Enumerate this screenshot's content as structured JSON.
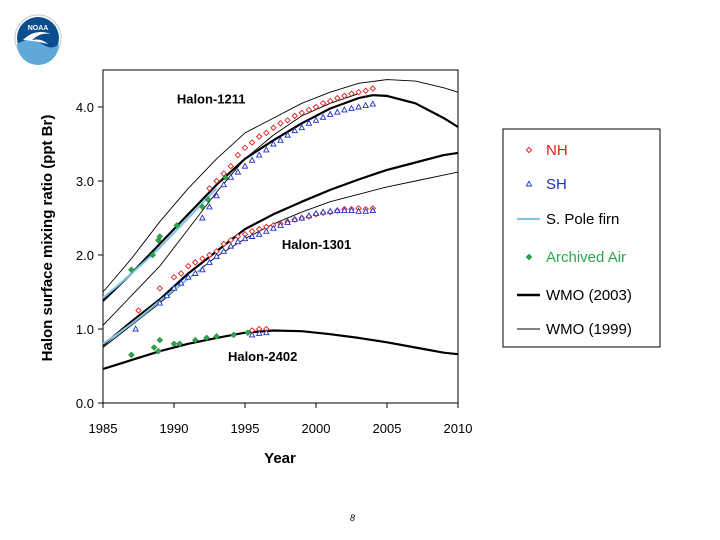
{
  "logo": {
    "text": "NOAA",
    "colors": {
      "outer": "#0a4e8f",
      "inner": "#5fa8d9",
      "bird": "#ffffff"
    }
  },
  "page_number": "8",
  "chart_data": {
    "type": "scatter",
    "xlabel": "Year",
    "ylabel": "Halon surface mixing ratio (ppt Br)",
    "xlim": [
      1985,
      2010
    ],
    "ylim": [
      0,
      4.5
    ],
    "x_ticks": [
      "1985",
      "1990",
      "1995",
      "2000",
      "2005",
      "2010"
    ],
    "y_ticks": [
      "0.0",
      "1.0",
      "2.0",
      "3.0",
      "4.0"
    ],
    "annotations": [
      {
        "text": "Halon-1211",
        "x": 1990.2,
        "y": 4.05
      },
      {
        "text": "Halon-1301",
        "x": 1997.6,
        "y": 2.08
      },
      {
        "text": "Halon-2402",
        "x": 1993.8,
        "y": 0.57
      }
    ],
    "legend": {
      "position": "right",
      "entries": [
        {
          "label": "NH",
          "marker": "diamond-open",
          "color": "#e0201b"
        },
        {
          "label": "SH",
          "marker": "triangle-open",
          "color": "#1e30c8"
        },
        {
          "label": "S. Pole firn",
          "marker": "line",
          "color": "#7ec4e8"
        },
        {
          "label": "Archived Air",
          "marker": "diamond-filled",
          "color": "#2aa84a"
        },
        {
          "label": "WMO (2003)",
          "marker": "line-thick",
          "color": "#000000"
        },
        {
          "label": "WMO (1999)",
          "marker": "line-thin",
          "color": "#000000"
        }
      ]
    },
    "series": [
      {
        "name": "WMO (2003)",
        "style": "thick",
        "color": "#000000",
        "group": "Halon-1211",
        "x": [
          1985,
          1987,
          1989,
          1991,
          1993,
          1995,
          1997,
          1999,
          2001,
          2003,
          2004,
          2005,
          2007,
          2009,
          2010
        ],
        "y": [
          1.38,
          1.75,
          2.15,
          2.55,
          2.95,
          3.3,
          3.55,
          3.78,
          3.98,
          4.12,
          4.16,
          4.15,
          4.05,
          3.85,
          3.73
        ]
      },
      {
        "name": "WMO (1999)",
        "style": "thin",
        "color": "#000000",
        "group": "Halon-1211 upper",
        "x": [
          1985,
          1987,
          1989,
          1991,
          1993,
          1995,
          1997,
          1999,
          2001,
          2003,
          2005,
          2007,
          2009,
          2010
        ],
        "y": [
          1.5,
          1.95,
          2.45,
          2.9,
          3.3,
          3.65,
          3.85,
          4.05,
          4.2,
          4.32,
          4.37,
          4.35,
          4.26,
          4.2
        ]
      },
      {
        "name": "WMO (1999)",
        "style": "thin",
        "color": "#000000",
        "group": "Halon-1211 lower",
        "x": [
          1985,
          1987,
          1989,
          1991,
          1993,
          1995,
          1997,
          1999,
          2001,
          2003
        ],
        "y": [
          1.05,
          1.45,
          1.85,
          2.35,
          2.85,
          3.3,
          3.62,
          3.88,
          4.05,
          4.18
        ]
      },
      {
        "name": "WMO (2003)",
        "style": "thick",
        "color": "#000000",
        "group": "Halon-1301",
        "x": [
          1985,
          1987,
          1989,
          1991,
          1993,
          1995,
          1997,
          1999,
          2001,
          2003,
          2005,
          2007,
          2009,
          2010
        ],
        "y": [
          0.78,
          1.1,
          1.4,
          1.75,
          2.05,
          2.35,
          2.55,
          2.72,
          2.88,
          3.02,
          3.15,
          3.25,
          3.35,
          3.38
        ]
      },
      {
        "name": "WMO (1999)",
        "style": "thin",
        "color": "#000000",
        "group": "Halon-1301 thin",
        "x": [
          1985,
          1987,
          1989,
          1991,
          1993,
          1995,
          1997,
          1999,
          2001,
          2003,
          2005,
          2007,
          2009,
          2010
        ],
        "y": [
          0.75,
          1.05,
          1.35,
          1.68,
          1.98,
          2.22,
          2.42,
          2.58,
          2.72,
          2.82,
          2.92,
          3.0,
          3.08,
          3.12
        ]
      },
      {
        "name": "WMO (2003)",
        "style": "thick",
        "color": "#000000",
        "group": "Halon-2402",
        "x": [
          1985,
          1987,
          1989,
          1991,
          1993,
          1995,
          1997,
          1999,
          2001,
          2003,
          2005,
          2007,
          2009,
          2010
        ],
        "y": [
          0.46,
          0.58,
          0.7,
          0.8,
          0.88,
          0.95,
          0.98,
          0.97,
          0.93,
          0.88,
          0.82,
          0.75,
          0.68,
          0.66
        ]
      },
      {
        "name": "S. Pole firn",
        "style": "firn",
        "color": "#7ec4e8",
        "group": "Halon-1211",
        "x": [
          1985,
          1986,
          1987,
          1988,
          1989,
          1990,
          1991,
          1992,
          1993
        ],
        "y": [
          1.42,
          1.58,
          1.75,
          1.92,
          2.1,
          2.3,
          2.5,
          2.7,
          2.9
        ]
      },
      {
        "name": "S. Pole firn",
        "style": "firn",
        "color": "#7ec4e8",
        "group": "Halon-1301",
        "x": [
          1985,
          1986,
          1987,
          1988,
          1989,
          1990,
          1991,
          1992
        ],
        "y": [
          0.8,
          0.93,
          1.07,
          1.22,
          1.38,
          1.53,
          1.68,
          1.82
        ]
      },
      {
        "name": "Archived Air",
        "style": "points",
        "marker": "diamond-filled",
        "color": "#2aa84a",
        "x": [
          1987.0,
          1988.5,
          1988.9,
          1989.0,
          1990.2,
          1992.0,
          1992.4,
          1993.6,
          1987.0,
          1988.6,
          1988.9,
          1989.0,
          1990.0,
          1990.4,
          1991.5,
          1992.3,
          1993.0,
          1994.2,
          1995.2
        ],
        "y": [
          1.8,
          2.0,
          2.2,
          2.25,
          2.4,
          2.65,
          2.75,
          3.05,
          0.65,
          0.75,
          0.7,
          0.85,
          0.8,
          0.8,
          0.85,
          0.88,
          0.9,
          0.92,
          0.95
        ]
      },
      {
        "name": "NH",
        "style": "points",
        "marker": "diamond-open",
        "color": "#e0201b",
        "x": [
          1992.5,
          1993.0,
          1993.5,
          1994.0,
          1994.5,
          1995.0,
          1995.5,
          1996.0,
          1996.5,
          1997.0,
          1997.5,
          1998.0,
          1998.5,
          1999.0,
          1999.5,
          2000.0,
          2000.5,
          2001.0,
          2001.5,
          2002.0,
          2002.5,
          2003.0,
          2003.5,
          2004.0,
          1987.5,
          1989.0,
          1990.0,
          1990.5,
          1991.0,
          1991.5,
          1992.0,
          1992.5,
          1993.0,
          1993.5,
          1994.0,
          1994.5,
          1995.0,
          1995.5,
          1996.0,
          1996.5,
          1997.0,
          1997.5,
          1998.0,
          1998.5,
          1999.0,
          1999.5,
          2000.0,
          2000.5,
          2001.0,
          2001.5,
          2002.0,
          2002.5,
          2003.0,
          2003.5,
          2004.0,
          1995.5,
          1996.0,
          1996.5
        ],
        "y": [
          2.9,
          3.0,
          3.1,
          3.2,
          3.35,
          3.45,
          3.52,
          3.6,
          3.65,
          3.72,
          3.78,
          3.82,
          3.88,
          3.92,
          3.96,
          4.0,
          4.05,
          4.08,
          4.12,
          4.15,
          4.18,
          4.2,
          4.22,
          4.25,
          1.25,
          1.55,
          1.7,
          1.75,
          1.85,
          1.9,
          1.95,
          2.0,
          2.05,
          2.15,
          2.2,
          2.25,
          2.28,
          2.32,
          2.35,
          2.38,
          2.4,
          2.42,
          2.45,
          2.48,
          2.5,
          2.52,
          2.55,
          2.57,
          2.58,
          2.6,
          2.62,
          2.62,
          2.63,
          2.62,
          2.63,
          0.98,
          1.0,
          1.0
        ]
      },
      {
        "name": "SH",
        "style": "points",
        "marker": "triangle-open",
        "color": "#1e30c8",
        "x": [
          1992.0,
          1992.5,
          1993.0,
          1993.5,
          1994.0,
          1994.5,
          1995.0,
          1995.5,
          1996.0,
          1996.5,
          1997.0,
          1997.5,
          1998.0,
          1998.5,
          1999.0,
          1999.5,
          2000.0,
          2000.5,
          2001.0,
          2001.5,
          2002.0,
          2002.5,
          2003.0,
          2003.5,
          2004.0,
          1987.3,
          1989.0,
          1989.5,
          1990.0,
          1990.5,
          1991.0,
          1991.5,
          1992.0,
          1992.5,
          1993.0,
          1993.5,
          1994.0,
          1994.5,
          1995.0,
          1995.5,
          1996.0,
          1996.5,
          1997.0,
          1997.5,
          1998.0,
          1998.5,
          1999.0,
          1999.5,
          2000.0,
          2000.5,
          2001.0,
          2001.5,
          2002.0,
          2002.5,
          2003.0,
          2003.5,
          2004.0,
          1995.5,
          1996.0,
          1996.5
        ],
        "y": [
          2.5,
          2.65,
          2.8,
          2.95,
          3.05,
          3.12,
          3.2,
          3.28,
          3.35,
          3.42,
          3.5,
          3.55,
          3.62,
          3.68,
          3.72,
          3.78,
          3.82,
          3.86,
          3.9,
          3.93,
          3.96,
          3.98,
          4.0,
          4.02,
          4.04,
          1.0,
          1.35,
          1.45,
          1.55,
          1.62,
          1.7,
          1.75,
          1.8,
          1.9,
          1.98,
          2.05,
          2.12,
          2.18,
          2.22,
          2.25,
          2.28,
          2.32,
          2.36,
          2.4,
          2.44,
          2.48,
          2.5,
          2.53,
          2.56,
          2.58,
          2.59,
          2.6,
          2.6,
          2.6,
          2.59,
          2.59,
          2.6,
          0.92,
          0.94,
          0.95
        ]
      }
    ]
  }
}
